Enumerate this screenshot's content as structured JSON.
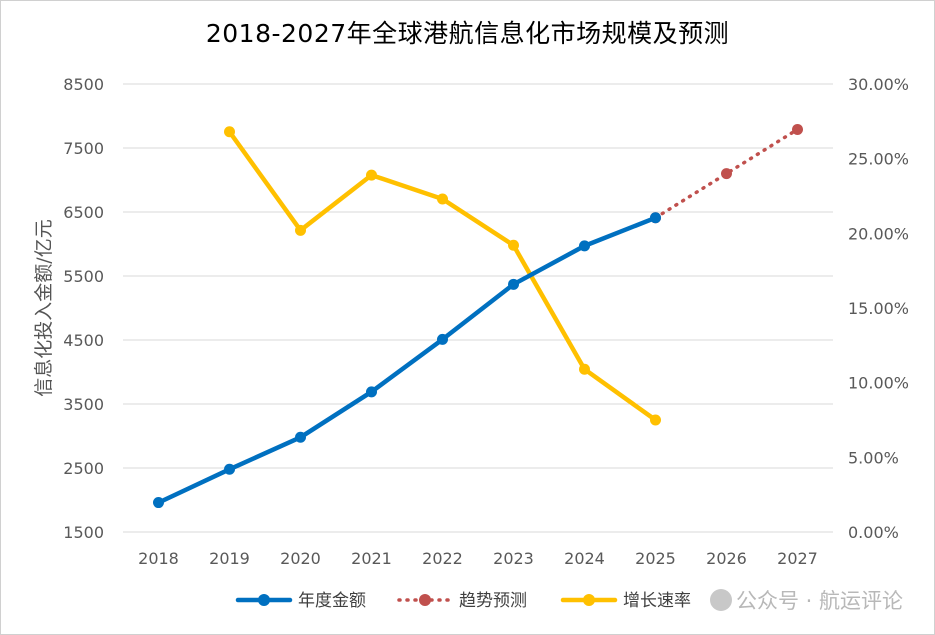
{
  "chart_data": {
    "type": "line",
    "title": "2018-2027年全球港航信息化市场规模及预测",
    "ylabel": "信息化投入金额/亿元",
    "categories": [
      "2018",
      "2019",
      "2020",
      "2021",
      "2022",
      "2023",
      "2024",
      "2025",
      "2026",
      "2027"
    ],
    "y_left_ticks": [
      "1500",
      "2500",
      "3500",
      "4500",
      "5500",
      "6500",
      "7500",
      "8500"
    ],
    "y_left_range": [
      1500,
      8500
    ],
    "y_right_ticks": [
      "0.00%",
      "5.00%",
      "10.00%",
      "15.00%",
      "20.00%",
      "25.00%",
      "30.00%"
    ],
    "y_right_range": [
      0,
      30
    ],
    "grid": true,
    "legend_position": "bottom",
    "series": [
      {
        "name": "年度金额",
        "axis": "left",
        "color": "#0070C0",
        "style": "solid",
        "x": [
          "2018",
          "2019",
          "2020",
          "2021",
          "2022",
          "2023",
          "2024",
          "2025"
        ],
        "values": [
          1960,
          2480,
          2980,
          3690,
          4510,
          5370,
          5970,
          6410
        ]
      },
      {
        "name": "趋势预测",
        "axis": "left",
        "color": "#C0504D",
        "style": "dotted",
        "x": [
          "2025",
          "2026",
          "2027"
        ],
        "values": [
          6410,
          7100,
          7790
        ]
      },
      {
        "name": "增长速率",
        "axis": "right",
        "color": "#FFC000",
        "style": "solid",
        "x": [
          "2019",
          "2020",
          "2021",
          "2022",
          "2023",
          "2024",
          "2025"
        ],
        "values": [
          26.8,
          20.2,
          23.9,
          22.3,
          19.2,
          10.9,
          7.5
        ]
      }
    ]
  },
  "watermark": {
    "text": "公众号 · 航运评论",
    "icon": "wechat-icon"
  }
}
